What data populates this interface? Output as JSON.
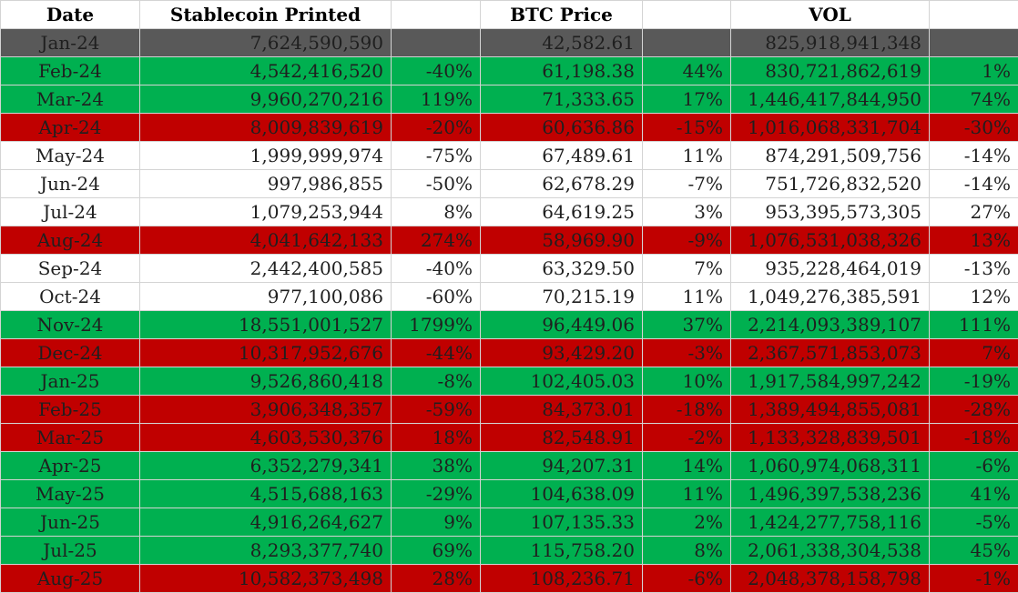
{
  "header": {
    "date": "Date",
    "stablecoin": "Stablecoin Printed",
    "stablecoin_pct": "",
    "btc": "BTC Price",
    "btc_pct": "",
    "vol": "VOL",
    "vol_pct": ""
  },
  "row_colors": {
    "grey": "#595959",
    "green": "#00b050",
    "red": "#c00000",
    "white": "#ffffff"
  },
  "rows": [
    {
      "color": "grey",
      "date": "Jan-24",
      "stablecoin": "7,624,590,590",
      "stablecoin_pct": "",
      "btc": "42,582.61",
      "btc_pct": "",
      "vol": "825,918,941,348",
      "vol_pct": ""
    },
    {
      "color": "green",
      "date": "Feb-24",
      "stablecoin": "4,542,416,520",
      "stablecoin_pct": "-40%",
      "btc": "61,198.38",
      "btc_pct": "44%",
      "vol": "830,721,862,619",
      "vol_pct": "1%"
    },
    {
      "color": "green",
      "date": "Mar-24",
      "stablecoin": "9,960,270,216",
      "stablecoin_pct": "119%",
      "btc": "71,333.65",
      "btc_pct": "17%",
      "vol": "1,446,417,844,950",
      "vol_pct": "74%"
    },
    {
      "color": "red",
      "date": "Apr-24",
      "stablecoin": "8,009,839,619",
      "stablecoin_pct": "-20%",
      "btc": "60,636.86",
      "btc_pct": "-15%",
      "vol": "1,016,068,331,704",
      "vol_pct": "-30%"
    },
    {
      "color": "white",
      "date": "May-24",
      "stablecoin": "1,999,999,974",
      "stablecoin_pct": "-75%",
      "btc": "67,489.61",
      "btc_pct": "11%",
      "vol": "874,291,509,756",
      "vol_pct": "-14%"
    },
    {
      "color": "white",
      "date": "Jun-24",
      "stablecoin": "997,986,855",
      "stablecoin_pct": "-50%",
      "btc": "62,678.29",
      "btc_pct": "-7%",
      "vol": "751,726,832,520",
      "vol_pct": "-14%"
    },
    {
      "color": "white",
      "date": "Jul-24",
      "stablecoin": "1,079,253,944",
      "stablecoin_pct": "8%",
      "btc": "64,619.25",
      "btc_pct": "3%",
      "vol": "953,395,573,305",
      "vol_pct": "27%"
    },
    {
      "color": "red",
      "date": "Aug-24",
      "stablecoin": "4,041,642,133",
      "stablecoin_pct": "274%",
      "btc": "58,969.90",
      "btc_pct": "-9%",
      "vol": "1,076,531,038,326",
      "vol_pct": "13%"
    },
    {
      "color": "white",
      "date": "Sep-24",
      "stablecoin": "2,442,400,585",
      "stablecoin_pct": "-40%",
      "btc": "63,329.50",
      "btc_pct": "7%",
      "vol": "935,228,464,019",
      "vol_pct": "-13%"
    },
    {
      "color": "white",
      "date": "Oct-24",
      "stablecoin": "977,100,086",
      "stablecoin_pct": "-60%",
      "btc": "70,215.19",
      "btc_pct": "11%",
      "vol": "1,049,276,385,591",
      "vol_pct": "12%"
    },
    {
      "color": "green",
      "date": "Nov-24",
      "stablecoin": "18,551,001,527",
      "stablecoin_pct": "1799%",
      "btc": "96,449.06",
      "btc_pct": "37%",
      "vol": "2,214,093,389,107",
      "vol_pct": "111%"
    },
    {
      "color": "red",
      "date": "Dec-24",
      "stablecoin": "10,317,952,676",
      "stablecoin_pct": "-44%",
      "btc": "93,429.20",
      "btc_pct": "-3%",
      "vol": "2,367,571,853,073",
      "vol_pct": "7%"
    },
    {
      "color": "green",
      "date": "Jan-25",
      "stablecoin": "9,526,860,418",
      "stablecoin_pct": "-8%",
      "btc": "102,405.03",
      "btc_pct": "10%",
      "vol": "1,917,584,997,242",
      "vol_pct": "-19%"
    },
    {
      "color": "red",
      "date": "Feb-25",
      "stablecoin": "3,906,348,357",
      "stablecoin_pct": "-59%",
      "btc": "84,373.01",
      "btc_pct": "-18%",
      "vol": "1,389,494,855,081",
      "vol_pct": "-28%"
    },
    {
      "color": "red",
      "date": "Mar-25",
      "stablecoin": "4,603,530,376",
      "stablecoin_pct": "18%",
      "btc": "82,548.91",
      "btc_pct": "-2%",
      "vol": "1,133,328,839,501",
      "vol_pct": "-18%"
    },
    {
      "color": "green",
      "date": "Apr-25",
      "stablecoin": "6,352,279,341",
      "stablecoin_pct": "38%",
      "btc": "94,207.31",
      "btc_pct": "14%",
      "vol": "1,060,974,068,311",
      "vol_pct": "-6%"
    },
    {
      "color": "green",
      "date": "May-25",
      "stablecoin": "4,515,688,163",
      "stablecoin_pct": "-29%",
      "btc": "104,638.09",
      "btc_pct": "11%",
      "vol": "1,496,397,538,236",
      "vol_pct": "41%"
    },
    {
      "color": "green",
      "date": "Jun-25",
      "stablecoin": "4,916,264,627",
      "stablecoin_pct": "9%",
      "btc": "107,135.33",
      "btc_pct": "2%",
      "vol": "1,424,277,758,116",
      "vol_pct": "-5%"
    },
    {
      "color": "green",
      "date": "Jul-25",
      "stablecoin": "8,293,377,740",
      "stablecoin_pct": "69%",
      "btc": "115,758.20",
      "btc_pct": "8%",
      "vol": "2,061,338,304,538",
      "vol_pct": "45%"
    },
    {
      "color": "red",
      "date": "Aug-25",
      "stablecoin": "10,582,373,498",
      "stablecoin_pct": "28%",
      "btc": "108,236.71",
      "btc_pct": "-6%",
      "vol": "2,048,378,158,798",
      "vol_pct": "-1%"
    }
  ]
}
